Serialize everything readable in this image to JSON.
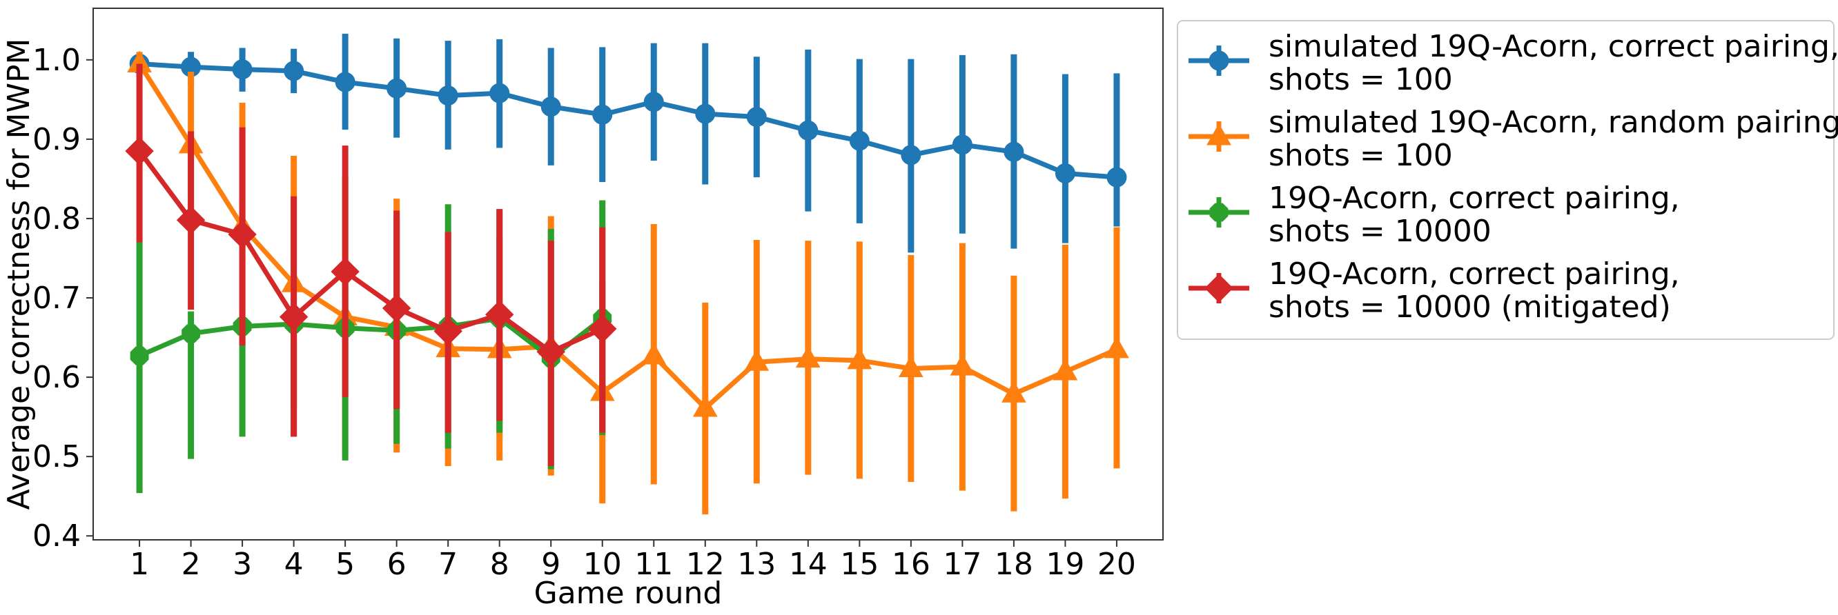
{
  "chart_data": {
    "type": "line",
    "title": "",
    "xlabel": "Game round",
    "ylabel": "Average correctness for MWPM",
    "x": [
      1,
      2,
      3,
      4,
      5,
      6,
      7,
      8,
      9,
      10,
      11,
      12,
      13,
      14,
      15,
      16,
      17,
      18,
      19,
      20
    ],
    "xlim": [
      0.1,
      20.9
    ],
    "ylim": [
      0.395,
      1.065
    ],
    "yticks": [
      0.4,
      0.5,
      0.6,
      0.7,
      0.8,
      0.9,
      1.0
    ],
    "ytick_labels": [
      "0.4",
      "0.5",
      "0.6",
      "0.7",
      "0.8",
      "0.9",
      "1.0"
    ],
    "grid": false,
    "legend_position": "outside-right-top",
    "series": [
      {
        "name": "simulated 19Q-Acorn, correct pairing,\nshots = 100",
        "color": "#1f77b4",
        "marker": "circle",
        "x": [
          1,
          2,
          3,
          4,
          5,
          6,
          7,
          8,
          9,
          10,
          11,
          12,
          13,
          14,
          15,
          16,
          17,
          18,
          19,
          20
        ],
        "values": [
          0.995,
          0.991,
          0.988,
          0.986,
          0.972,
          0.964,
          0.955,
          0.958,
          0.941,
          0.931,
          0.947,
          0.932,
          0.928,
          0.911,
          0.898,
          0.88,
          0.893,
          0.884,
          0.857,
          0.852
        ],
        "err_low": [
          0.985,
          0.968,
          0.96,
          0.958,
          0.912,
          0.902,
          0.887,
          0.889,
          0.867,
          0.846,
          0.873,
          0.843,
          0.852,
          0.809,
          0.794,
          0.757,
          0.781,
          0.762,
          0.769,
          0.79
        ],
        "err_high": [
          1.005,
          1.01,
          1.015,
          1.014,
          1.033,
          1.027,
          1.024,
          1.026,
          1.015,
          1.016,
          1.021,
          1.021,
          1.004,
          1.013,
          1.001,
          1.001,
          1.006,
          1.007,
          0.982,
          0.983
        ]
      },
      {
        "name": "simulated 19Q-Acorn, random pairing,\nshots = 100",
        "color": "#ff7f0e",
        "marker": "triangle",
        "x": [
          1,
          2,
          3,
          4,
          5,
          6,
          7,
          8,
          9,
          10,
          11,
          12,
          13,
          14,
          15,
          16,
          17,
          18,
          19,
          20
        ],
        "values": [
          0.995,
          0.893,
          0.79,
          0.718,
          0.676,
          0.663,
          0.636,
          0.635,
          0.639,
          0.581,
          0.627,
          0.561,
          0.619,
          0.623,
          0.621,
          0.611,
          0.613,
          0.579,
          0.607,
          0.635
        ],
        "err_low": [
          0.98,
          0.8,
          0.64,
          0.56,
          0.5,
          0.505,
          0.488,
          0.495,
          0.476,
          0.441,
          0.465,
          0.427,
          0.466,
          0.477,
          0.472,
          0.468,
          0.457,
          0.431,
          0.447,
          0.485
        ],
        "err_high": [
          1.01,
          0.985,
          0.946,
          0.879,
          0.852,
          0.825,
          0.785,
          0.775,
          0.803,
          0.72,
          0.793,
          0.694,
          0.773,
          0.772,
          0.771,
          0.754,
          0.769,
          0.728,
          0.767,
          0.789
        ]
      },
      {
        "name": "19Q-Acorn, correct pairing,\nshots = 10000",
        "color": "#2ca02c",
        "marker": "octagon",
        "x": [
          1,
          2,
          3,
          4,
          5,
          6,
          7,
          8,
          9,
          10
        ],
        "values": [
          0.627,
          0.655,
          0.664,
          0.667,
          0.662,
          0.659,
          0.664,
          0.674,
          0.624,
          0.674
        ],
        "err_low": [
          0.454,
          0.497,
          0.525,
          0.525,
          0.495,
          0.516,
          0.51,
          0.53,
          0.484,
          0.527
        ],
        "err_high": [
          0.77,
          0.683,
          0.651,
          0.677,
          0.721,
          0.802,
          0.818,
          0.81,
          0.787,
          0.823
        ]
      },
      {
        "name": "19Q-Acorn, correct pairing,\nshots = 10000 (mitigated)",
        "color": "#d62728",
        "marker": "diamond",
        "x": [
          1,
          2,
          3,
          4,
          5,
          6,
          7,
          8,
          9,
          10
        ],
        "values": [
          0.885,
          0.798,
          0.78,
          0.676,
          0.733,
          0.687,
          0.658,
          0.679,
          0.632,
          0.661
        ],
        "err_low": [
          0.77,
          0.685,
          0.64,
          0.525,
          0.575,
          0.56,
          0.53,
          0.545,
          0.488,
          0.53
        ],
        "err_high": [
          0.995,
          0.91,
          0.915,
          0.828,
          0.892,
          0.81,
          0.783,
          0.812,
          0.772,
          0.789
        ]
      }
    ]
  }
}
